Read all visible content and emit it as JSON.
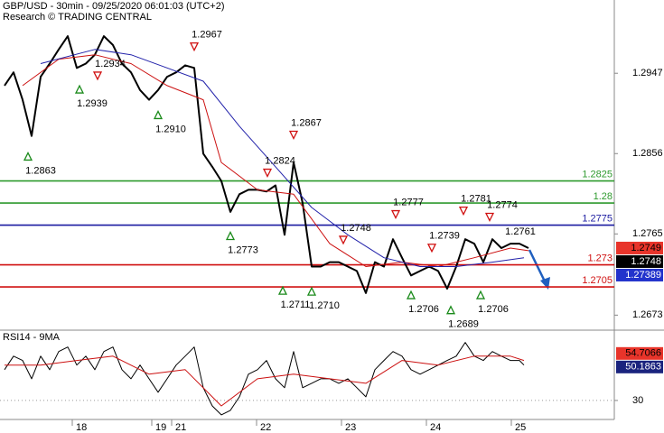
{
  "chart_data": [
    {
      "type": "line",
      "title": "GBP/USD - 30min - 09/25/2020 06:01:03 (UTC+2)",
      "subtitle": "Research © TRADING CENTRAL",
      "xlim": [
        0,
        340
      ],
      "ylim": [
        1.2657,
        1.303
      ],
      "yticks": [
        1.2947,
        1.2856,
        1.2765,
        1.2673
      ],
      "grid": false,
      "series": [
        {
          "name": "GBP/USD",
          "color": "#000000",
          "width": 2,
          "x": [
            2.5,
            7.5,
            12.5,
            17.5,
            22.5,
            27.5,
            32.5,
            37.5,
            42.5,
            47.5,
            52.5,
            57.5,
            62.5,
            67.5,
            72.5,
            77.5,
            82.5,
            87.5,
            92.5,
            97.5,
            102.5,
            107.5,
            112.5,
            117.5,
            122.5,
            127.5,
            132.5,
            137.5,
            142.5,
            147.5,
            152.5,
            157.5,
            162.5,
            167.5,
            172.5,
            177.5,
            182.5,
            187.5,
            192.5,
            197.5,
            202.5,
            207.5,
            212.5,
            217.5,
            222.5,
            227.5,
            232.5,
            237.5,
            242.5,
            247.5,
            252.5,
            257.5,
            262.5,
            267.5,
            272.5,
            277.5,
            282.5,
            287.5,
            292.5
          ],
          "values": [
            1.2933,
            1.2948,
            1.2917,
            1.2876,
            1.2943,
            1.2958,
            1.2974,
            1.2989,
            1.2953,
            1.2958,
            1.2968,
            1.2989,
            1.2979,
            1.2958,
            1.2948,
            1.2928,
            1.2917,
            1.2928,
            1.2943,
            1.2948,
            1.2956,
            1.2953,
            1.2856,
            1.2841,
            1.2825,
            1.279,
            1.281,
            1.2815,
            1.2815,
            1.2813,
            1.282,
            1.2764,
            1.2846,
            1.28,
            1.2728,
            1.2728,
            1.2733,
            1.2733,
            1.2728,
            1.2723,
            1.2698,
            1.2733,
            1.2728,
            1.2759,
            1.2738,
            1.2718,
            1.2723,
            1.2728,
            1.2723,
            1.2703,
            1.2728,
            1.2759,
            1.2754,
            1.2733,
            1.2759,
            1.2749,
            1.2754,
            1.2754,
            1.2749
          ]
        },
        {
          "color": "#cc1111",
          "width": 1,
          "x": [
            12.5,
            32.5,
            52.5,
            72.5,
            92.5,
            112.5,
            122.5,
            142.5,
            162.5,
            182.5,
            202.5,
            222.5,
            242.5,
            262.5,
            282.5,
            292.5
          ],
          "values": [
            1.2933,
            1.2963,
            1.2968,
            1.2958,
            1.2933,
            1.2917,
            1.2846,
            1.2815,
            1.281,
            1.2754,
            1.2728,
            1.2733,
            1.2728,
            1.2738,
            1.2749,
            1.2746
          ]
        },
        {
          "color": "#2222aa",
          "width": 1,
          "x": [
            22.5,
            52.5,
            72.5,
            92.5,
            112.5,
            132.5,
            152.5,
            172.5,
            192.5,
            212.5,
            232.5,
            252.5,
            272.5,
            290
          ],
          "values": [
            1.2958,
            1.2974,
            1.2968,
            1.2953,
            1.2938,
            1.2887,
            1.2841,
            1.2795,
            1.2764,
            1.2738,
            1.2728,
            1.2728,
            1.2733,
            1.2738
          ]
        }
      ],
      "levels": [
        {
          "value": 1.2825,
          "color": "#2e9a2e"
        },
        {
          "value": 1.28,
          "color": "#2e9a2e"
        },
        {
          "value": 1.2775,
          "color": "#1a1aa0"
        },
        {
          "value": 1.273,
          "color": "#d01010"
        },
        {
          "value": 1.2705,
          "color": "#d01010"
        }
      ],
      "annotations": [
        {
          "x": 15.5,
          "value": 1.2863,
          "label": "1.2863",
          "marker": "up"
        },
        {
          "x": 44,
          "value": 1.2939,
          "label": "1.2939",
          "marker": "up"
        },
        {
          "x": 54,
          "value": 1.2934,
          "label": "1.2934",
          "marker": "down"
        },
        {
          "x": 87.5,
          "value": 1.291,
          "label": "1.2910",
          "marker": "up"
        },
        {
          "x": 107.5,
          "value": 1.2967,
          "label": "1.2967",
          "marker": "down"
        },
        {
          "x": 127.5,
          "value": 1.2773,
          "label": "1.2773",
          "marker": "up"
        },
        {
          "x": 148,
          "value": 1.2824,
          "label": "1.2824",
          "marker": "down"
        },
        {
          "x": 156.5,
          "value": 1.2711,
          "label": "1.2711",
          "marker": "up"
        },
        {
          "x": 162.5,
          "value": 1.2867,
          "label": "1.2867",
          "marker": "down"
        },
        {
          "x": 172.5,
          "value": 1.271,
          "label": "1.2710",
          "marker": "up"
        },
        {
          "x": 190,
          "value": 1.2748,
          "label": "1.2748",
          "marker": "down"
        },
        {
          "x": 219,
          "value": 1.2777,
          "label": "1.2777",
          "marker": "down"
        },
        {
          "x": 227.5,
          "value": 1.2706,
          "label": "1.2706",
          "marker": "up"
        },
        {
          "x": 239,
          "value": 1.2739,
          "label": "1.2739",
          "marker": "down"
        },
        {
          "x": 249.5,
          "value": 1.2689,
          "label": "1.2689",
          "marker": "up"
        },
        {
          "x": 256.5,
          "value": 1.2781,
          "label": "1.2781",
          "marker": "down"
        },
        {
          "x": 266,
          "value": 1.2706,
          "label": "1.2706",
          "marker": "up"
        },
        {
          "x": 271,
          "value": 1.2774,
          "label": "1.2774",
          "marker": "down"
        },
        {
          "x": 288,
          "value": 1.2761,
          "label": "1.2761",
          "marker": "none"
        }
      ],
      "price_labels": [
        {
          "value": 1.2749,
          "color": "#e8342a",
          "text_color": "#000000"
        },
        {
          "value": 1.2748,
          "color": "#000000",
          "text_color": "#ffffff"
        },
        {
          "value": 1.27389,
          "color": "#2233cc",
          "text_color": "#ffffff"
        }
      ]
    },
    {
      "type": "line",
      "title": "RSI14 - 9MA",
      "xlim": [
        0,
        340
      ],
      "ylim": [
        20,
        66
      ],
      "yticks": [
        30
      ],
      "grid": true,
      "xticks": [
        {
          "value": 40,
          "label": "18"
        },
        {
          "value": 84,
          "label": "19"
        },
        {
          "value": 95,
          "label": "21"
        },
        {
          "value": 142,
          "label": "22"
        },
        {
          "value": 189,
          "label": "23"
        },
        {
          "value": 236,
          "label": "24"
        },
        {
          "value": 283,
          "label": "25"
        }
      ],
      "series": [
        {
          "color": "#000000",
          "width": 1,
          "x": [
            2.5,
            7.5,
            12.5,
            17.5,
            22.5,
            27.5,
            32.5,
            37.5,
            42.5,
            47.5,
            52.5,
            57.5,
            62.5,
            67.5,
            72.5,
            77.5,
            82.5,
            87.5,
            92.5,
            97.5,
            102.5,
            107.5,
            112.5,
            117.5,
            122.5,
            127.5,
            132.5,
            137.5,
            142.5,
            147.5,
            152.5,
            157.5,
            162.5,
            167.5,
            172.5,
            177.5,
            182.5,
            187.5,
            192.5,
            197.5,
            202.5,
            207.5,
            212.5,
            217.5,
            222.5,
            227.5,
            232.5,
            237.5,
            242.5,
            247.5,
            252.5,
            257.5,
            262.5,
            267.5,
            272.5,
            277.5,
            282.5,
            287.5,
            290
          ],
          "values": [
            46.2,
            53.3,
            51.0,
            41.4,
            53.3,
            46.2,
            55.7,
            58.1,
            48.6,
            53.3,
            46.2,
            55.7,
            58.1,
            46.2,
            41.4,
            48.6,
            41.4,
            34.3,
            41.4,
            48.6,
            53.3,
            58.1,
            36.7,
            27.1,
            22.4,
            24.8,
            31.9,
            43.8,
            46.2,
            51.0,
            41.4,
            36.7,
            55.7,
            36.7,
            39.0,
            41.4,
            41.4,
            39.0,
            41.4,
            36.7,
            31.9,
            46.2,
            51.0,
            55.7,
            53.3,
            46.2,
            43.8,
            46.2,
            48.6,
            51.0,
            53.3,
            60.5,
            53.3,
            51.0,
            55.7,
            53.3,
            51.0,
            51.0,
            48.6
          ]
        },
        {
          "color": "#cc1111",
          "width": 1,
          "x": [
            2.5,
            22.5,
            42.5,
            62.5,
            82.5,
            102.5,
            122.5,
            142.5,
            162.5,
            182.5,
            202.5,
            222.5,
            242.5,
            262.5,
            282.5,
            290
          ],
          "values": [
            48.6,
            48.6,
            51.0,
            53.3,
            43.8,
            46.2,
            27.1,
            41.4,
            43.8,
            41.4,
            39.0,
            51.0,
            48.6,
            53.3,
            53.3,
            51.0
          ]
        }
      ],
      "price_labels": [
        {
          "value": 54.7066,
          "color": "#e8342a",
          "text_color": "#000000"
        },
        {
          "value": 50.1863,
          "color": "#1a237e",
          "text_color": "#ffffff"
        }
      ]
    }
  ]
}
